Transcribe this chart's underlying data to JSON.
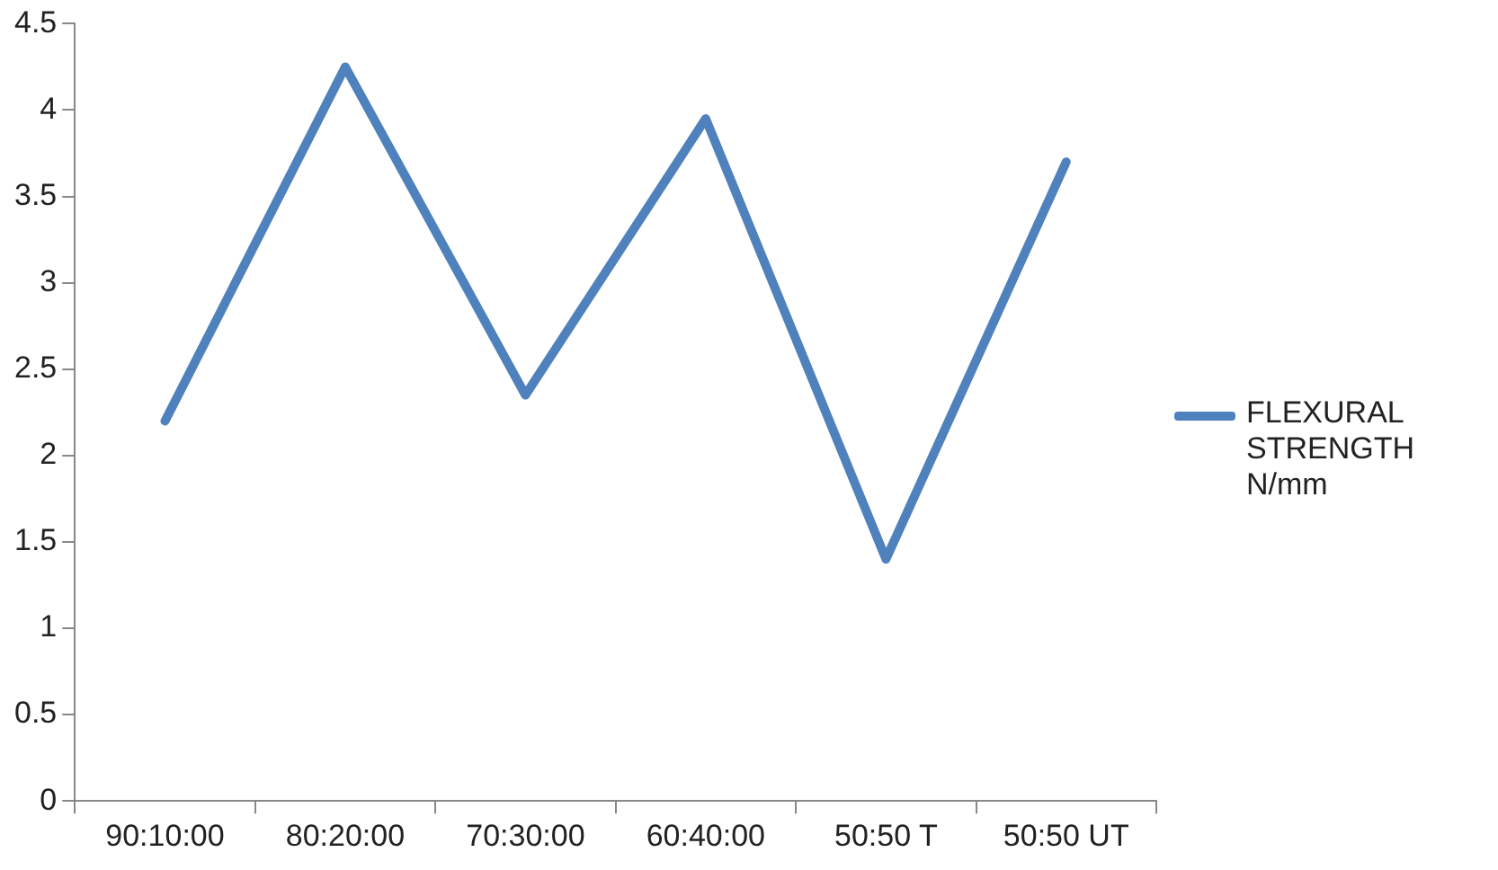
{
  "chart_data": {
    "type": "line",
    "categories": [
      "90:10:00",
      "80:20:00",
      "70:30:00",
      "60:40:00",
      "50:50 T",
      "50:50 UT"
    ],
    "series": [
      {
        "name": "FLEXURAL STRENGTH  N/mm",
        "color": "#4f81bd",
        "values": [
          2.2,
          4.25,
          2.35,
          3.95,
          1.4,
          3.7
        ]
      }
    ],
    "ylim": [
      0,
      4.5
    ],
    "yticks": [
      0,
      0.5,
      1,
      1.5,
      2,
      2.5,
      3,
      3.5,
      4,
      4.5
    ],
    "grid": false,
    "legend": "right",
    "marker": "none",
    "line_style": "solid"
  }
}
